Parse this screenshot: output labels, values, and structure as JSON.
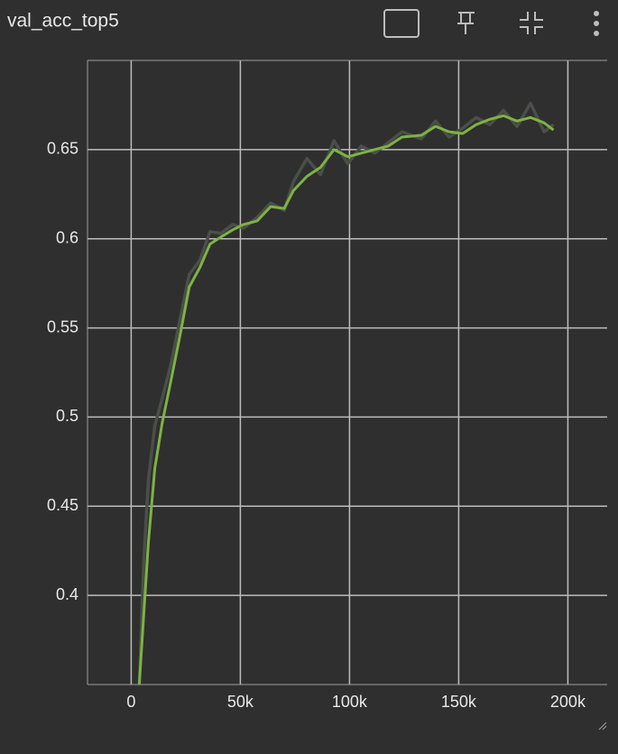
{
  "chart_data": {
    "type": "line",
    "title": "val_acc_top5",
    "x": [
      3700,
      5800,
      7900,
      10800,
      14100,
      18300,
      22400,
      26600,
      31500,
      36100,
      41100,
      46500,
      51500,
      57700,
      63900,
      70100,
      74300,
      80500,
      86700,
      92900,
      99200,
      105400,
      111600,
      117800,
      124000,
      132800,
      139400,
      145600,
      151800,
      158000,
      164300,
      170500,
      176700,
      182900,
      189100,
      193400
    ],
    "series": [
      {
        "color": "#4a4f47",
        "values": [
          0.35,
          0.42,
          0.465,
          0.495,
          0.51,
          0.53,
          0.555,
          0.58,
          0.588,
          0.604,
          0.603,
          0.608,
          0.606,
          0.612,
          0.62,
          0.616,
          0.632,
          0.645,
          0.636,
          0.655,
          0.642,
          0.652,
          0.648,
          0.654,
          0.66,
          0.656,
          0.666,
          0.657,
          0.662,
          0.668,
          0.664,
          0.672,
          0.663,
          0.676,
          0.66,
          0.664
        ]
      },
      {
        "color": "#7cb342",
        "values": [
          0.35,
          0.39,
          0.43,
          0.471,
          0.496,
          0.521,
          0.546,
          0.573,
          0.584,
          0.597,
          0.601,
          0.605,
          0.608,
          0.61,
          0.618,
          0.617,
          0.627,
          0.635,
          0.64,
          0.65,
          0.646,
          0.648,
          0.65,
          0.652,
          0.657,
          0.658,
          0.663,
          0.66,
          0.659,
          0.664,
          0.667,
          0.669,
          0.666,
          0.668,
          0.665,
          0.661
        ]
      }
    ],
    "xlim": [
      -20000,
      218000
    ],
    "xticks": [
      0,
      {
        "value": 50000,
        "label": "50k"
      },
      {
        "value": 100000,
        "label": "100k"
      },
      {
        "value": 150000,
        "label": "150k"
      },
      {
        "value": 200000,
        "label": "200k"
      }
    ],
    "ylim": [
      0.35,
      0.7
    ],
    "yticks": [
      0.4,
      0.45,
      0.5,
      0.55,
      0.6,
      0.65
    ],
    "grid": true
  }
}
